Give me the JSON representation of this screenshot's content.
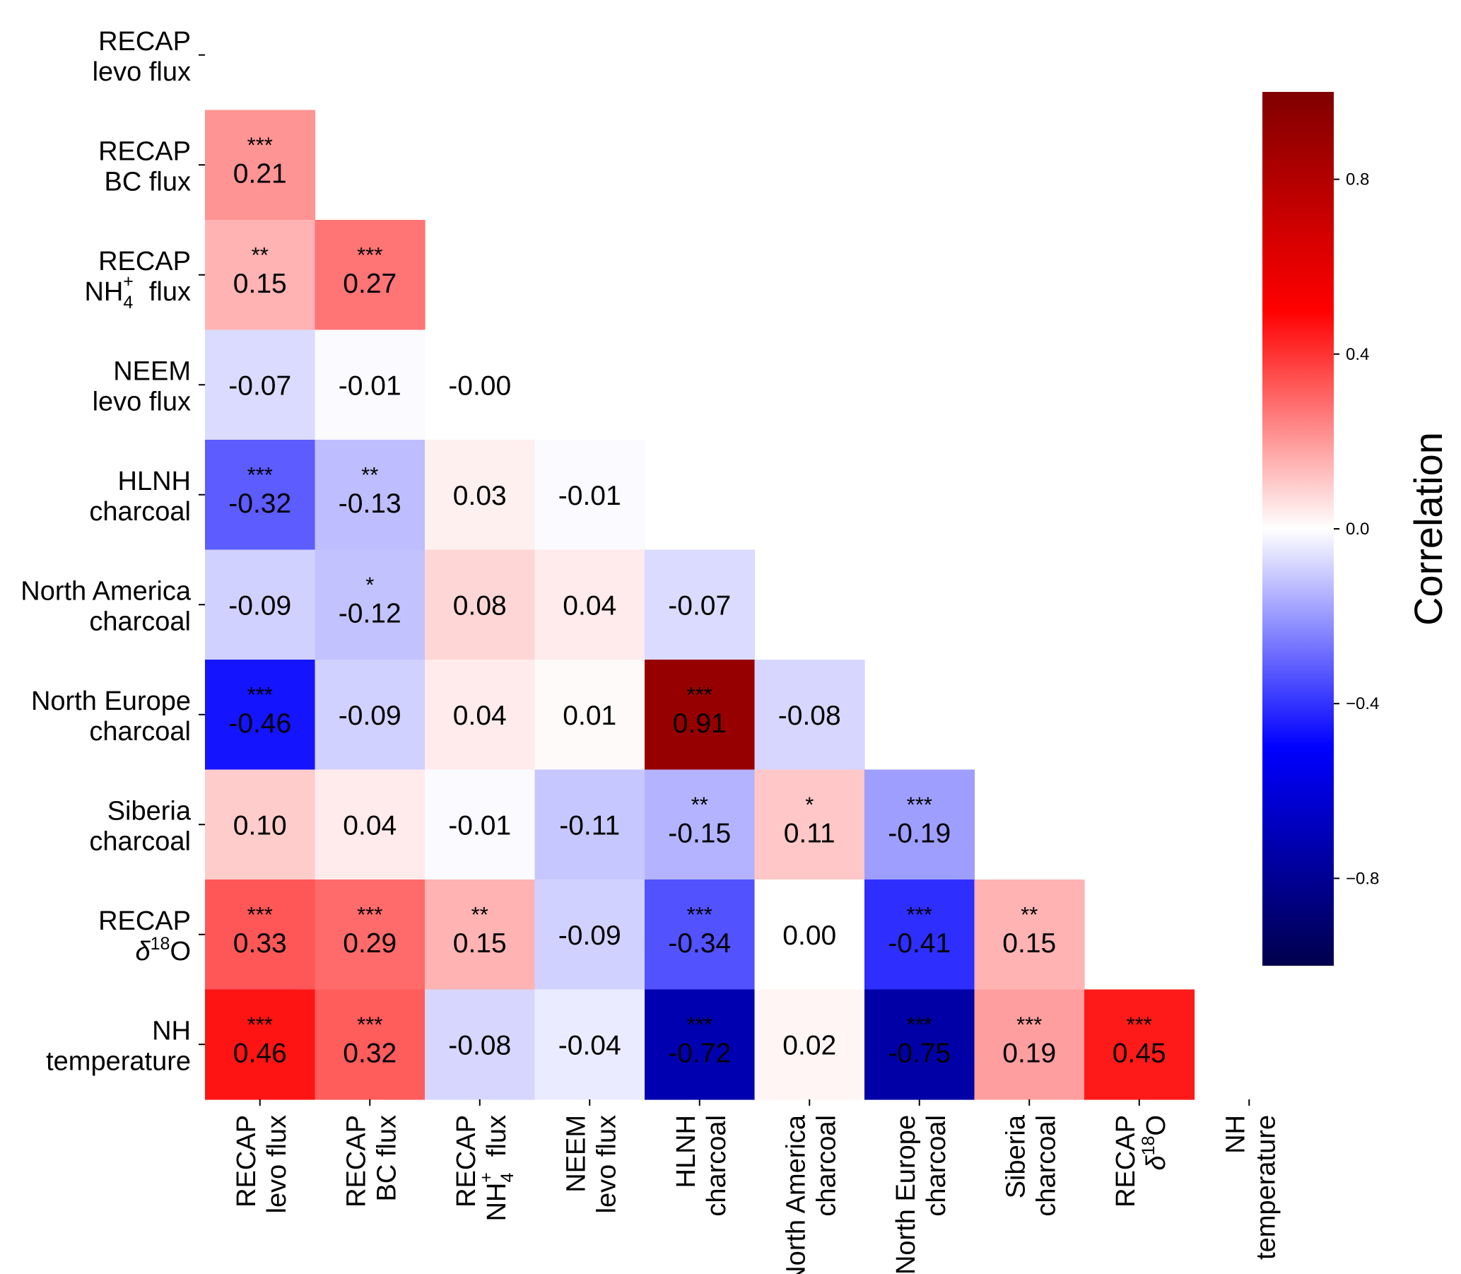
{
  "chart_data": {
    "type": "heatmap",
    "subtype": "lower-triangle correlation matrix",
    "variables": [
      {
        "line1": "RECAP",
        "line2": "levo flux"
      },
      {
        "line1": "RECAP",
        "line2": "BC flux"
      },
      {
        "line1": "RECAP",
        "line2": "NH₄⁺ flux",
        "base": "NH",
        "sub": "4",
        "sup": "+",
        "rest": "flux"
      },
      {
        "line1": "NEEM",
        "line2": "levo flux"
      },
      {
        "line1": "HLNH",
        "line2": "charcoal"
      },
      {
        "line1": "North America",
        "line2": "charcoal"
      },
      {
        "line1": "North Europe",
        "line2": "charcoal"
      },
      {
        "line1": "Siberia",
        "line2": "charcoal"
      },
      {
        "line1": "RECAP",
        "line2": "δ¹⁸O",
        "delta": "δ",
        "sup18": "18",
        "o": "O"
      },
      {
        "line1": "NH",
        "line2": "temperature"
      }
    ],
    "cells": [
      {
        "row": 1,
        "col": 0,
        "value": "0.21",
        "sig": "***"
      },
      {
        "row": 2,
        "col": 0,
        "value": "0.15",
        "sig": "**"
      },
      {
        "row": 2,
        "col": 1,
        "value": "0.27",
        "sig": "***"
      },
      {
        "row": 3,
        "col": 0,
        "value": "-0.07",
        "sig": ""
      },
      {
        "row": 3,
        "col": 1,
        "value": "-0.01",
        "sig": ""
      },
      {
        "row": 3,
        "col": 2,
        "value": "-0.00",
        "sig": ""
      },
      {
        "row": 4,
        "col": 0,
        "value": "-0.32",
        "sig": "***"
      },
      {
        "row": 4,
        "col": 1,
        "value": "-0.13",
        "sig": "**"
      },
      {
        "row": 4,
        "col": 2,
        "value": "0.03",
        "sig": ""
      },
      {
        "row": 4,
        "col": 3,
        "value": "-0.01",
        "sig": ""
      },
      {
        "row": 5,
        "col": 0,
        "value": "-0.09",
        "sig": ""
      },
      {
        "row": 5,
        "col": 1,
        "value": "-0.12",
        "sig": "*"
      },
      {
        "row": 5,
        "col": 2,
        "value": "0.08",
        "sig": ""
      },
      {
        "row": 5,
        "col": 3,
        "value": "0.04",
        "sig": ""
      },
      {
        "row": 5,
        "col": 4,
        "value": "-0.07",
        "sig": ""
      },
      {
        "row": 6,
        "col": 0,
        "value": "-0.46",
        "sig": "***"
      },
      {
        "row": 6,
        "col": 1,
        "value": "-0.09",
        "sig": ""
      },
      {
        "row": 6,
        "col": 2,
        "value": "0.04",
        "sig": ""
      },
      {
        "row": 6,
        "col": 3,
        "value": "0.01",
        "sig": ""
      },
      {
        "row": 6,
        "col": 4,
        "value": "0.91",
        "sig": "***"
      },
      {
        "row": 6,
        "col": 5,
        "value": "-0.08",
        "sig": ""
      },
      {
        "row": 7,
        "col": 0,
        "value": "0.10",
        "sig": ""
      },
      {
        "row": 7,
        "col": 1,
        "value": "0.04",
        "sig": ""
      },
      {
        "row": 7,
        "col": 2,
        "value": "-0.01",
        "sig": ""
      },
      {
        "row": 7,
        "col": 3,
        "value": "-0.11",
        "sig": ""
      },
      {
        "row": 7,
        "col": 4,
        "value": "-0.15",
        "sig": "**"
      },
      {
        "row": 7,
        "col": 5,
        "value": "0.11",
        "sig": "*"
      },
      {
        "row": 7,
        "col": 6,
        "value": "-0.19",
        "sig": "***"
      },
      {
        "row": 8,
        "col": 0,
        "value": "0.33",
        "sig": "***"
      },
      {
        "row": 8,
        "col": 1,
        "value": "0.29",
        "sig": "***"
      },
      {
        "row": 8,
        "col": 2,
        "value": "0.15",
        "sig": "**"
      },
      {
        "row": 8,
        "col": 3,
        "value": "-0.09",
        "sig": ""
      },
      {
        "row": 8,
        "col": 4,
        "value": "-0.34",
        "sig": "***"
      },
      {
        "row": 8,
        "col": 5,
        "value": "0.00",
        "sig": ""
      },
      {
        "row": 8,
        "col": 6,
        "value": "-0.41",
        "sig": "***"
      },
      {
        "row": 8,
        "col": 7,
        "value": "0.15",
        "sig": "**"
      },
      {
        "row": 9,
        "col": 0,
        "value": "0.46",
        "sig": "***"
      },
      {
        "row": 9,
        "col": 1,
        "value": "0.32",
        "sig": "***"
      },
      {
        "row": 9,
        "col": 2,
        "value": "-0.08",
        "sig": ""
      },
      {
        "row": 9,
        "col": 3,
        "value": "-0.04",
        "sig": ""
      },
      {
        "row": 9,
        "col": 4,
        "value": "-0.72",
        "sig": "***"
      },
      {
        "row": 9,
        "col": 5,
        "value": "0.02",
        "sig": ""
      },
      {
        "row": 9,
        "col": 6,
        "value": "-0.75",
        "sig": "***"
      },
      {
        "row": 9,
        "col": 7,
        "value": "0.19",
        "sig": "***"
      },
      {
        "row": 9,
        "col": 8,
        "value": "0.45",
        "sig": "***"
      }
    ],
    "colorbar": {
      "label": "Correlation",
      "range": [
        -1,
        1
      ],
      "ticks": [
        "0.8",
        "0.4",
        "0.0",
        "−0.4",
        "−0.8"
      ],
      "tick_values": [
        0.8,
        0.4,
        0.0,
        -0.4,
        -0.8
      ],
      "colormap": "seismic",
      "colors": {
        "low": "#00004c",
        "blue": "#0000ff",
        "mid": "#ffffff",
        "red": "#ff0000",
        "high": "#800000"
      }
    }
  }
}
